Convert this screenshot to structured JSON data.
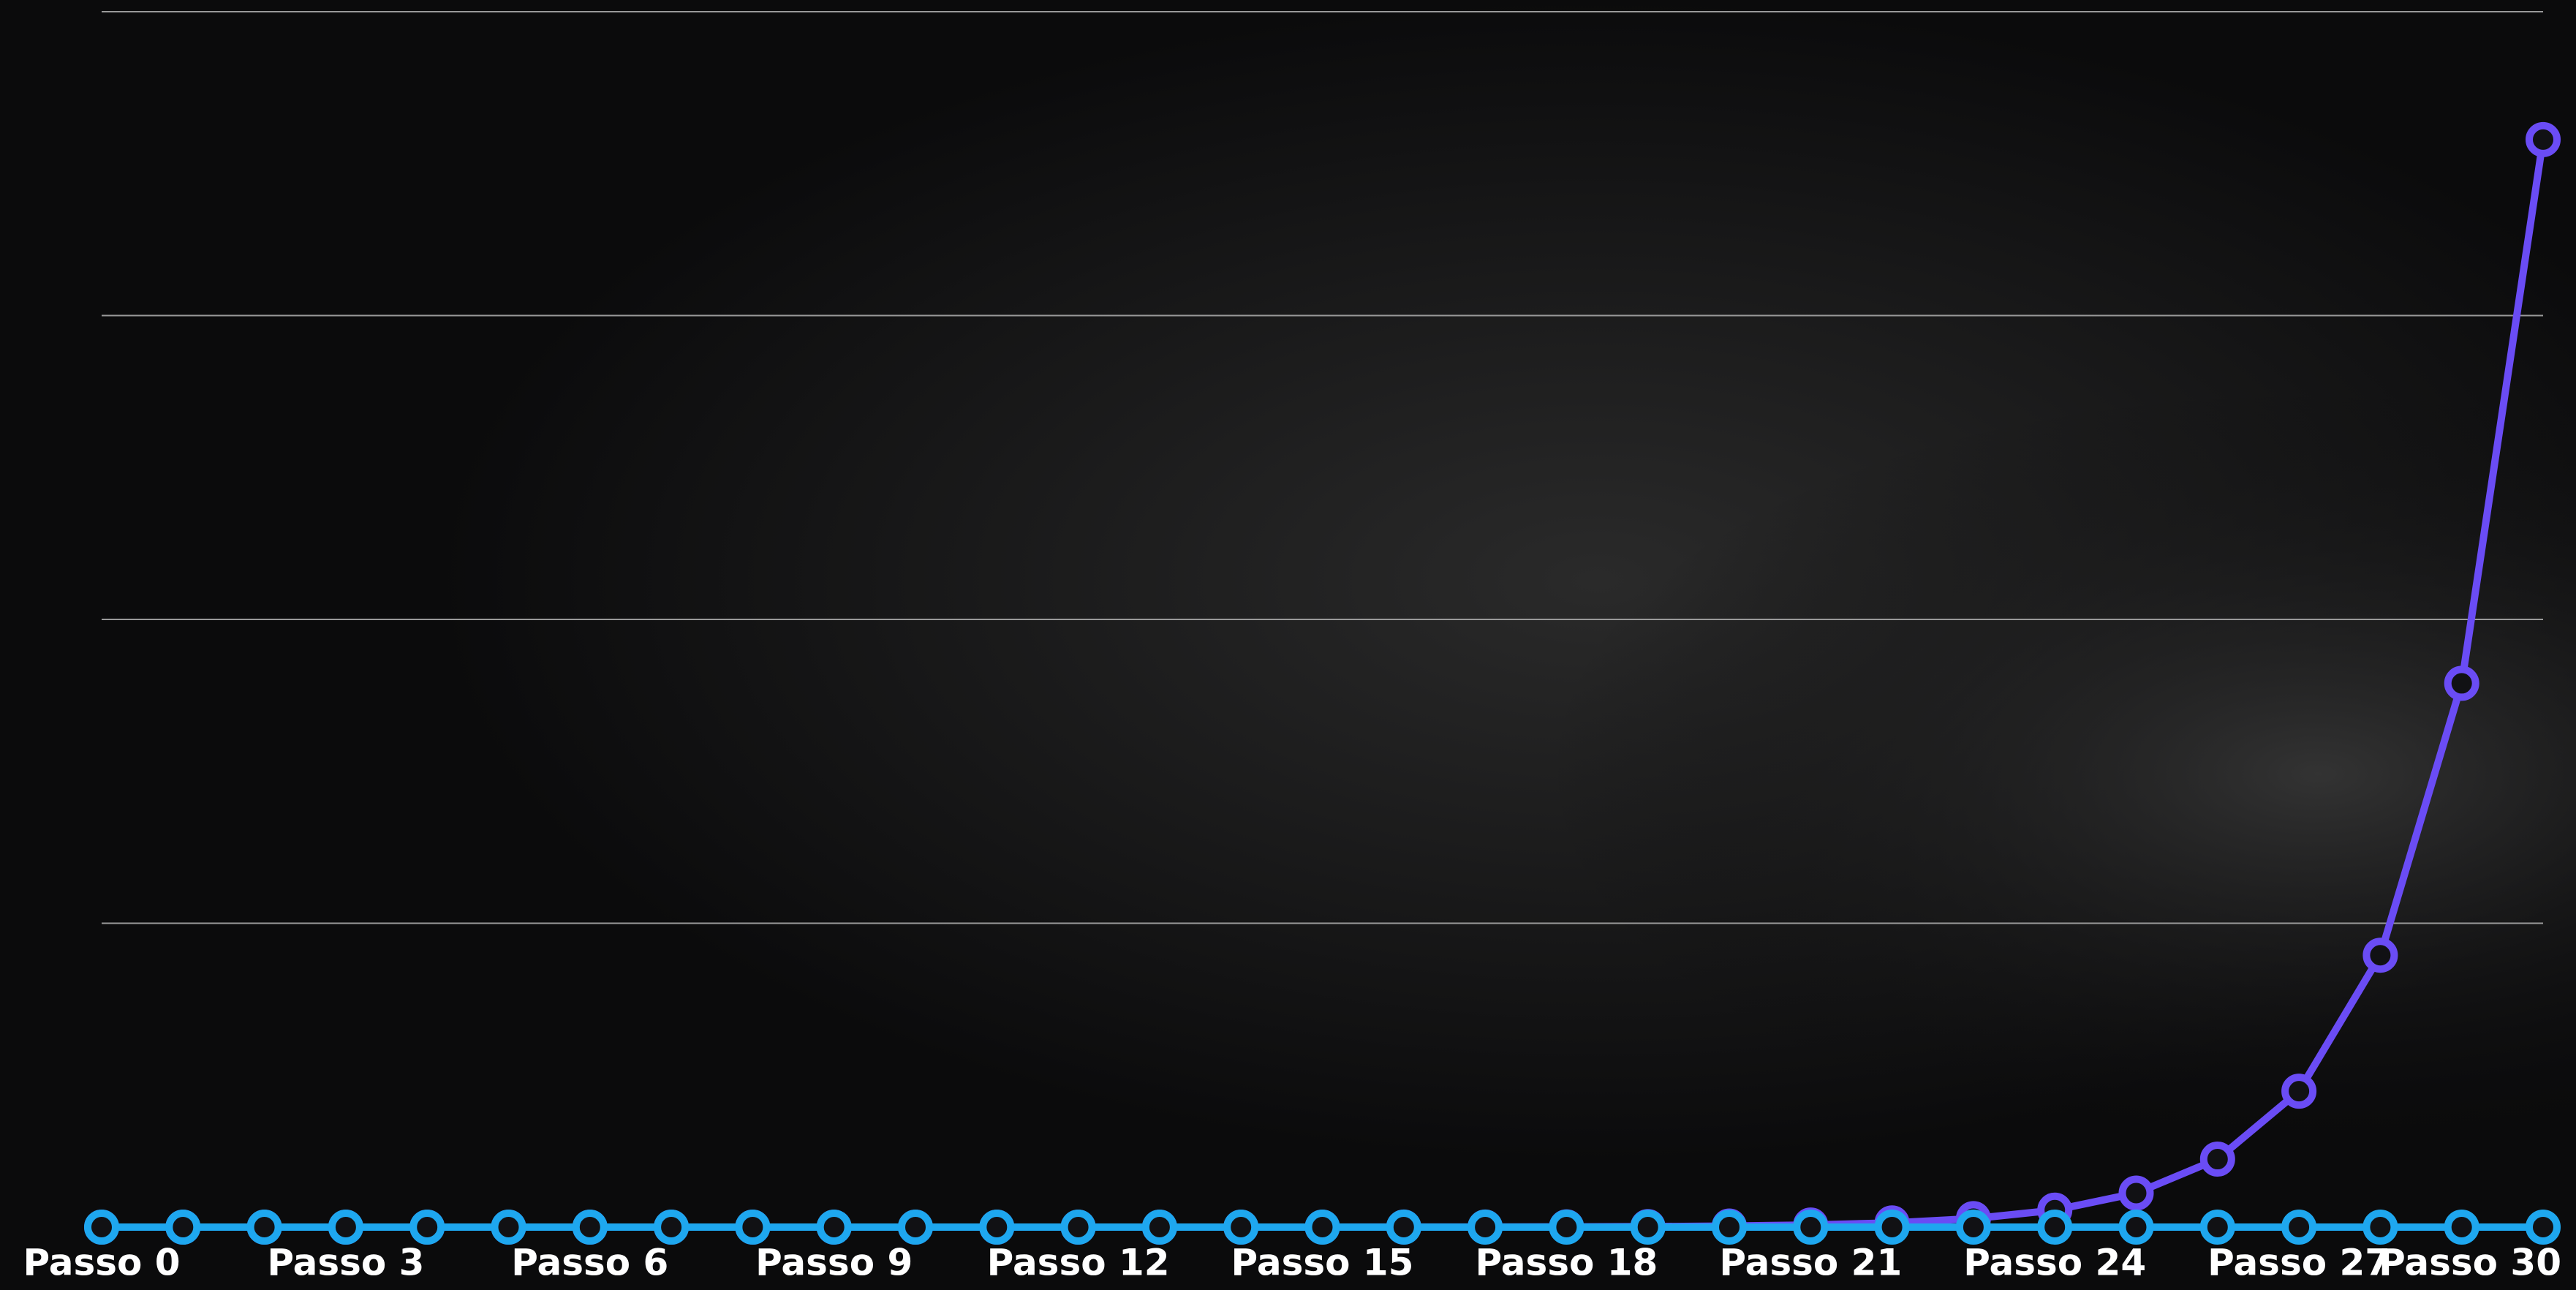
{
  "chart_data": {
    "type": "line",
    "categories": [
      "Passo 0",
      null,
      null,
      "Passo 3",
      null,
      null,
      "Passo 6",
      null,
      null,
      "Passo 9",
      null,
      null,
      "Passo 12",
      null,
      null,
      "Passo 15",
      null,
      null,
      "Passo 18",
      null,
      null,
      "Passo 21",
      null,
      null,
      "Passo 24",
      null,
      null,
      "Passo 27",
      null,
      null,
      "Passo 30"
    ],
    "series": [
      {
        "color": "#6a4cf5",
        "values": [
          1,
          2,
          4,
          8,
          16,
          32,
          64,
          128,
          256,
          512,
          1024,
          2048,
          4096,
          8192,
          16384,
          32768,
          65536,
          131072,
          262144,
          524288,
          1048576,
          2097152,
          4194304,
          8388608,
          16777216,
          33554432,
          67108864,
          134217728,
          268435456,
          536870912,
          1073741824
        ]
      },
      {
        "color": "#1ea7ef",
        "values": [
          0,
          1,
          2,
          3,
          4,
          5,
          6,
          7,
          8,
          9,
          10,
          11,
          12,
          13,
          14,
          15,
          16,
          17,
          18,
          19,
          20,
          21,
          22,
          23,
          24,
          25,
          26,
          27,
          28,
          29,
          30
        ]
      }
    ],
    "ylim": [
      0,
      1200000000
    ],
    "yticks": [
      0,
      300000000,
      600000000,
      900000000,
      1200000000
    ],
    "grid": true
  }
}
